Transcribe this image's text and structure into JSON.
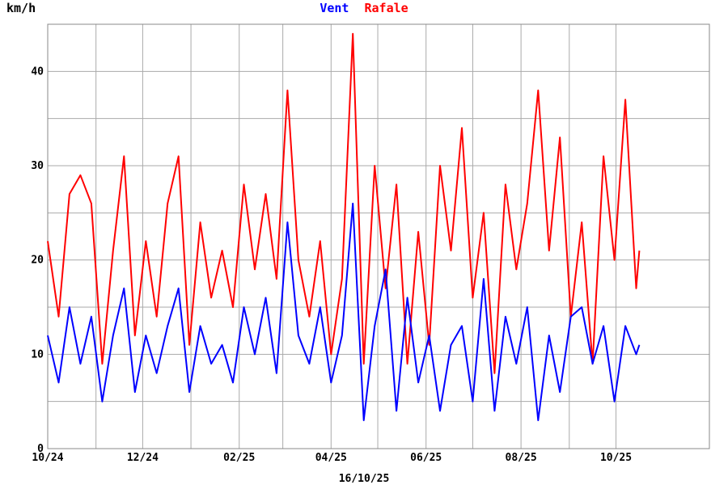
{
  "chart_data": {
    "type": "line",
    "ylabel": "km/h",
    "date_label": "16/10/25",
    "ylim": [
      0,
      45
    ],
    "yticks": [
      0,
      10,
      20,
      30,
      40
    ],
    "xlim": [
      "2024-10-01",
      "2025-11-30"
    ],
    "xticks": [
      {
        "date": "2024-10-01",
        "label": "10/24"
      },
      {
        "date": "2024-11-01",
        "label": ""
      },
      {
        "date": "2024-12-01",
        "label": "12/24"
      },
      {
        "date": "2025-01-01",
        "label": ""
      },
      {
        "date": "2025-02-01",
        "label": "02/25"
      },
      {
        "date": "2025-03-01",
        "label": ""
      },
      {
        "date": "2025-04-01",
        "label": "04/25"
      },
      {
        "date": "2025-05-01",
        "label": ""
      },
      {
        "date": "2025-06-01",
        "label": "06/25"
      },
      {
        "date": "2025-07-01",
        "label": ""
      },
      {
        "date": "2025-08-01",
        "label": "08/25"
      },
      {
        "date": "2025-09-01",
        "label": ""
      },
      {
        "date": "2025-10-01",
        "label": "10/25"
      }
    ],
    "grid": true,
    "x": [
      "2024-10-01",
      "2024-10-08",
      "2024-10-15",
      "2024-10-22",
      "2024-10-29",
      "2024-11-05",
      "2024-11-12",
      "2024-11-19",
      "2024-11-26",
      "2024-12-03",
      "2024-12-10",
      "2024-12-17",
      "2024-12-24",
      "2024-12-31",
      "2025-01-07",
      "2025-01-14",
      "2025-01-21",
      "2025-01-28",
      "2025-02-04",
      "2025-02-11",
      "2025-02-18",
      "2025-02-25",
      "2025-03-04",
      "2025-03-11",
      "2025-03-18",
      "2025-03-25",
      "2025-04-01",
      "2025-04-08",
      "2025-04-15",
      "2025-04-22",
      "2025-04-29",
      "2025-05-06",
      "2025-05-13",
      "2025-05-20",
      "2025-05-27",
      "2025-06-03",
      "2025-06-10",
      "2025-06-17",
      "2025-06-24",
      "2025-07-01",
      "2025-07-08",
      "2025-07-15",
      "2025-07-22",
      "2025-07-29",
      "2025-08-05",
      "2025-08-12",
      "2025-08-19",
      "2025-08-26",
      "2025-09-02",
      "2025-09-09",
      "2025-09-16",
      "2025-09-23",
      "2025-09-30",
      "2025-10-07",
      "2025-10-14",
      "2025-10-16"
    ],
    "series": [
      {
        "name": "Vent",
        "color": "#0000ff",
        "values": [
          12,
          7,
          15,
          9,
          14,
          5,
          12,
          17,
          6,
          12,
          8,
          13,
          17,
          6,
          13,
          9,
          11,
          7,
          15,
          10,
          16,
          8,
          24,
          12,
          9,
          15,
          7,
          12,
          26,
          3,
          13,
          19,
          4,
          16,
          7,
          12,
          4,
          11,
          13,
          5,
          18,
          4,
          14,
          9,
          15,
          3,
          12,
          6,
          14,
          15,
          9,
          13,
          5,
          13,
          10,
          11
        ]
      },
      {
        "name": "Rafale",
        "color": "#ff0000",
        "values": [
          22,
          14,
          27,
          29,
          26,
          9,
          21,
          31,
          12,
          22,
          14,
          26,
          31,
          11,
          24,
          16,
          21,
          15,
          28,
          19,
          27,
          18,
          38,
          20,
          14,
          22,
          10,
          18,
          44,
          9,
          30,
          17,
          28,
          9,
          23,
          11,
          30,
          21,
          34,
          16,
          25,
          8,
          28,
          19,
          26,
          38,
          21,
          33,
          14,
          24,
          9,
          31,
          20,
          37,
          17,
          21
        ]
      }
    ]
  }
}
